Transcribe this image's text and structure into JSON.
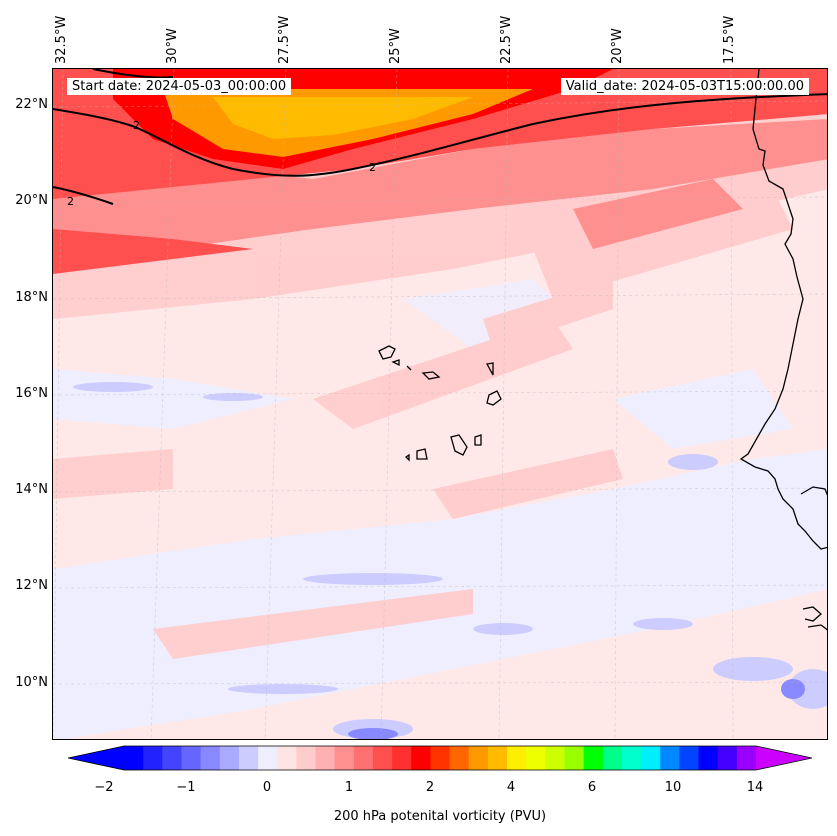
{
  "header": {
    "start_date": "Start date: 2024-05-03_00:00:00",
    "valid_date": "Valid_date: 2024-05-03T15:00:00.00"
  },
  "map": {
    "lon_labels": [
      "32.5°W",
      "30°W",
      "27.5°W",
      "25°W",
      "22.5°W",
      "20°W",
      "17.5°W"
    ],
    "lat_labels": [
      "22°N",
      "20°N",
      "18°N",
      "16°N",
      "14°N",
      "12°N",
      "10°N"
    ],
    "contour_labels": [
      "2",
      "2",
      "2"
    ],
    "colors": {
      "coast": "#000000",
      "gridline": "#b0b0b0"
    }
  },
  "colorbar": {
    "label": "200 hPa potenital vorticity (PVU)",
    "ticks": [
      "−2",
      "−1",
      "0",
      "1",
      "2",
      "4",
      "6",
      "10",
      "14"
    ],
    "colors": [
      "#0000ff",
      "#2222ff",
      "#4444ff",
      "#6666ff",
      "#8888ff",
      "#aaaaff",
      "#ccccff",
      "#eeeeff",
      "#ffe4e4",
      "#ffcccc",
      "#ffb0b0",
      "#ff9090",
      "#ff7070",
      "#ff5050",
      "#ff3030",
      "#ff0000",
      "#ff3300",
      "#ff6600",
      "#ff9900",
      "#ffbb00",
      "#ffee00",
      "#eeff00",
      "#ccff00",
      "#99ff00",
      "#00ff00",
      "#00ff88",
      "#00ffcc",
      "#00eeff",
      "#0088ff",
      "#0044ff",
      "#0000ff",
      "#4400ff",
      "#9900ff"
    ],
    "under_color": "#0000ff",
    "over_color": "#cc00ff"
  }
}
